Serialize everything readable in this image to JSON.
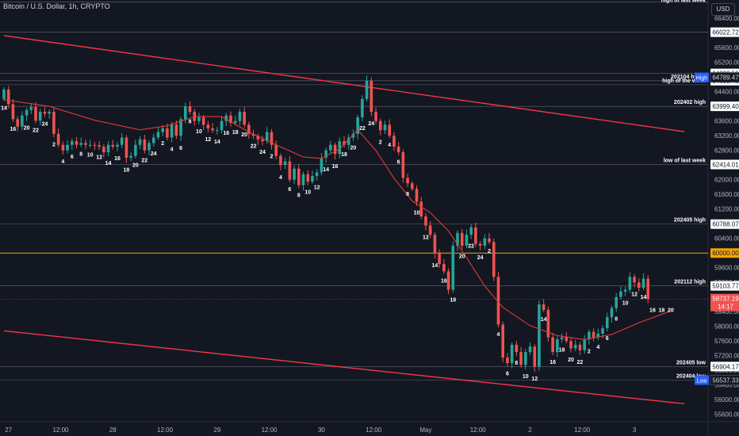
{
  "header": {
    "title": "Bitcoin / U.S. Dollar, 1h, CRYPTO",
    "currency_button": "USD"
  },
  "colors": {
    "background": "#131722",
    "up": "#26a69a",
    "down": "#ef5350",
    "grid_text": "#b2b5be",
    "level_line": "#787b86",
    "orange_level": "#f7a600",
    "trendline": "#f23645"
  },
  "chart_data": {
    "type": "candlestick",
    "ylim": [
      55400,
      66900
    ],
    "y_ticks": [
      55600,
      56000,
      56400,
      56800,
      57200,
      57600,
      58000,
      58400,
      58800,
      59200,
      59600,
      60000,
      60400,
      60800,
      61200,
      61600,
      62000,
      62400,
      62800,
      63200,
      63600,
      64000,
      64400,
      64800,
      65200,
      65600,
      66000,
      66400
    ],
    "y_tick_labels": [
      "55600.00",
      "56000.00",
      "56400.00",
      "56800.00",
      "57200.00",
      "57600.00",
      "58000.00",
      "58400.00",
      "58800.00",
      "59200.00",
      "59600.00",
      "60000.00",
      "60400.00",
      "60800.00",
      "61200.00",
      "61600.00",
      "62000.00",
      "62400.00",
      "62800.00",
      "63200.00",
      "63600.00",
      "64000.00",
      "64400.00",
      "64800.00",
      "65200.00",
      "65600.00",
      "66000.00",
      "66400.00"
    ],
    "x_ticks": [
      "27",
      "12:00",
      "28",
      "12:00",
      "29",
      "12:00",
      "30",
      "12:00",
      "May",
      "12:00",
      "2",
      "12:00",
      "3"
    ],
    "x_tick_values": [
      1,
      12.5,
      24,
      35.5,
      47,
      58.5,
      70,
      81.5,
      93,
      104.5,
      116,
      127.5,
      139
    ],
    "levels": [
      {
        "label": "high of last week",
        "price": 66850,
        "price_label": ""
      },
      {
        "label": "",
        "price": 66022.72,
        "price_label": "66022.72"
      },
      {
        "label": "",
        "price": 64898.56,
        "price_label": "64898.56"
      },
      {
        "label": "202104 highs",
        "price": 64699.48,
        "price_label": "64699.48"
      },
      {
        "label": "high of the week",
        "price": 64590,
        "price_label": ""
      },
      {
        "label": "202402 high",
        "price": 63999.4,
        "price_label": "63999.40"
      },
      {
        "label": "low of last week",
        "price": 62414.01,
        "price_label": "62414.01"
      },
      {
        "label": "202405 high",
        "price": 60788.07,
        "price_label": "60788.07"
      },
      {
        "label": "",
        "price": 60000.0,
        "price_label": "60000.00"
      },
      {
        "label": "202112 high",
        "price": 59103.77,
        "price_label": "59103.77"
      },
      {
        "label": "202405 low",
        "price": 56904.17,
        "price_label": "56904.17"
      },
      {
        "label": "202404 low",
        "price": 56537.33,
        "price_label": "56537.33"
      }
    ],
    "badges": [
      {
        "tag": "High",
        "value": "64789.47",
        "price": 64789.47
      },
      {
        "tag": "Low",
        "value": "56537.33",
        "price": 56537.33
      }
    ],
    "last_price": {
      "value": "58737.19",
      "countdown": "14:17",
      "price": 58737.19
    },
    "hour_labels": [
      {
        "t": 0,
        "text": "14"
      },
      {
        "t": 2,
        "text": "16"
      },
      {
        "t": 5,
        "text": "20"
      },
      {
        "t": 7,
        "text": "22"
      },
      {
        "t": 9,
        "text": "24"
      },
      {
        "t": 11,
        "text": "2"
      },
      {
        "t": 13,
        "text": "4"
      },
      {
        "t": 15,
        "text": "6"
      },
      {
        "t": 17,
        "text": "8"
      },
      {
        "t": 19,
        "text": "10"
      },
      {
        "t": 21,
        "text": "12"
      },
      {
        "t": 23,
        "text": "14"
      },
      {
        "t": 25,
        "text": "16"
      },
      {
        "t": 27,
        "text": "18"
      },
      {
        "t": 29,
        "text": "20"
      },
      {
        "t": 31,
        "text": "22"
      },
      {
        "t": 33,
        "text": "24"
      },
      {
        "t": 35,
        "text": "2"
      },
      {
        "t": 37,
        "text": "4"
      },
      {
        "t": 39,
        "text": "6"
      },
      {
        "t": 41,
        "text": "8"
      },
      {
        "t": 43,
        "text": "10"
      },
      {
        "t": 45,
        "text": "12"
      },
      {
        "t": 47,
        "text": "14"
      },
      {
        "t": 49,
        "text": "16"
      },
      {
        "t": 51,
        "text": "18"
      },
      {
        "t": 53,
        "text": "20"
      },
      {
        "t": 55,
        "text": "22"
      },
      {
        "t": 57,
        "text": "24"
      },
      {
        "t": 59,
        "text": "2"
      },
      {
        "t": 61,
        "text": "4"
      },
      {
        "t": 63,
        "text": "6"
      },
      {
        "t": 65,
        "text": "8"
      },
      {
        "t": 67,
        "text": "10"
      },
      {
        "t": 69,
        "text": "12"
      },
      {
        "t": 71,
        "text": "14"
      },
      {
        "t": 73,
        "text": "16"
      },
      {
        "t": 75,
        "text": "18"
      },
      {
        "t": 77,
        "text": "20"
      },
      {
        "t": 79,
        "text": "22"
      },
      {
        "t": 81,
        "text": "24"
      },
      {
        "t": 83,
        "text": "2"
      },
      {
        "t": 85,
        "text": "4"
      },
      {
        "t": 87,
        "text": "6"
      },
      {
        "t": 89,
        "text": "8"
      },
      {
        "t": 91,
        "text": "10"
      },
      {
        "t": 93,
        "text": "12"
      },
      {
        "t": 95,
        "text": "14"
      },
      {
        "t": 97,
        "text": "16"
      },
      {
        "t": 99,
        "text": "18"
      },
      {
        "t": 101,
        "text": "20"
      },
      {
        "t": 103,
        "text": "22"
      },
      {
        "t": 105,
        "text": "24"
      },
      {
        "t": 107,
        "text": "2"
      },
      {
        "t": 109,
        "text": "4"
      },
      {
        "t": 111,
        "text": "6"
      },
      {
        "t": 113,
        "text": "8"
      },
      {
        "t": 115,
        "text": "10"
      },
      {
        "t": 117,
        "text": "12"
      },
      {
        "t": 119,
        "text": "14"
      },
      {
        "t": 121,
        "text": "16"
      },
      {
        "t": 123,
        "text": "18"
      },
      {
        "t": 125,
        "text": "20"
      },
      {
        "t": 127,
        "text": "22"
      },
      {
        "t": 129,
        "text": "2"
      },
      {
        "t": 131,
        "text": "4"
      },
      {
        "t": 133,
        "text": "6"
      },
      {
        "t": 135,
        "text": "8"
      },
      {
        "t": 137,
        "text": "10"
      },
      {
        "t": 139,
        "text": "12"
      },
      {
        "t": 141,
        "text": "14"
      },
      {
        "t": 143,
        "text": "16"
      },
      {
        "t": 145,
        "text": "18"
      },
      {
        "t": 147,
        "text": "20"
      }
    ],
    "trendlines": [
      {
        "t0": 0,
        "p0": 65930,
        "t1": 150,
        "p1": 63310
      },
      {
        "t0": 0,
        "p0": 57880,
        "t1": 150,
        "p1": 55890
      }
    ],
    "moving_average": [
      [
        0,
        64180
      ],
      [
        10,
        64000
      ],
      [
        20,
        63620
      ],
      [
        30,
        63360
      ],
      [
        36,
        63470
      ],
      [
        42,
        63720
      ],
      [
        48,
        63720
      ],
      [
        54,
        63300
      ],
      [
        60,
        62950
      ],
      [
        66,
        62620
      ],
      [
        70,
        62580
      ],
      [
        74,
        62840
      ],
      [
        78,
        63360
      ],
      [
        82,
        62800
      ],
      [
        86,
        62040
      ],
      [
        90,
        61420
      ],
      [
        94,
        61100
      ],
      [
        98,
        60600
      ],
      [
        102,
        59880
      ],
      [
        106,
        59100
      ],
      [
        110,
        58520
      ],
      [
        116,
        58020
      ],
      [
        122,
        57750
      ],
      [
        128,
        57640
      ],
      [
        134,
        57780
      ],
      [
        140,
        58100
      ],
      [
        147,
        58420
      ]
    ],
    "candles_close": [
      64460,
      64060,
      63650,
      63450,
      63750,
      63900,
      63980,
      63610,
      63850,
      63800,
      63850,
      63250,
      62950,
      62800,
      62950,
      63050,
      62950,
      63000,
      62950,
      62950,
      62940,
      62900,
      62750,
      62950,
      62900,
      62950,
      63150,
      62600,
      62650,
      62950,
      63100,
      62800,
      63000,
      63150,
      63300,
      63400,
      63150,
      63500,
      63200,
      63650,
      64000,
      63850,
      63600,
      63700,
      63500,
      63400,
      63350,
      63350,
      63600,
      63750,
      63550,
      63600,
      63850,
      63500,
      63250,
      63200,
      63100,
      63050,
      63300,
      62950,
      62650,
      62400,
      62500,
      62000,
      62300,
      61850,
      62150,
      61950,
      62100,
      62200,
      62600,
      62800,
      62950,
      62700,
      63050,
      62950,
      63150,
      63250,
      63700,
      64200,
      64700,
      63850,
      63600,
      63350,
      63500,
      63200,
      62900,
      62750,
      62050,
      61900,
      61750,
      61400,
      61000,
      60750,
      60500,
      60000,
      59700,
      59500,
      59000,
      60200,
      60550,
      60200,
      60500,
      60700,
      60250,
      60200,
      60400,
      60300,
      59350,
      58050,
      57150,
      57000,
      57500,
      57300,
      56950,
      57300,
      57450,
      56900,
      58600,
      58450,
      57700,
      57300,
      57650,
      57700,
      57600,
      57400,
      57500,
      57350,
      57650,
      57850,
      57700,
      57800,
      57950,
      58250,
      58500,
      58800,
      58950,
      59000,
      59350,
      59200,
      59050,
      59300,
      58750
    ]
  }
}
